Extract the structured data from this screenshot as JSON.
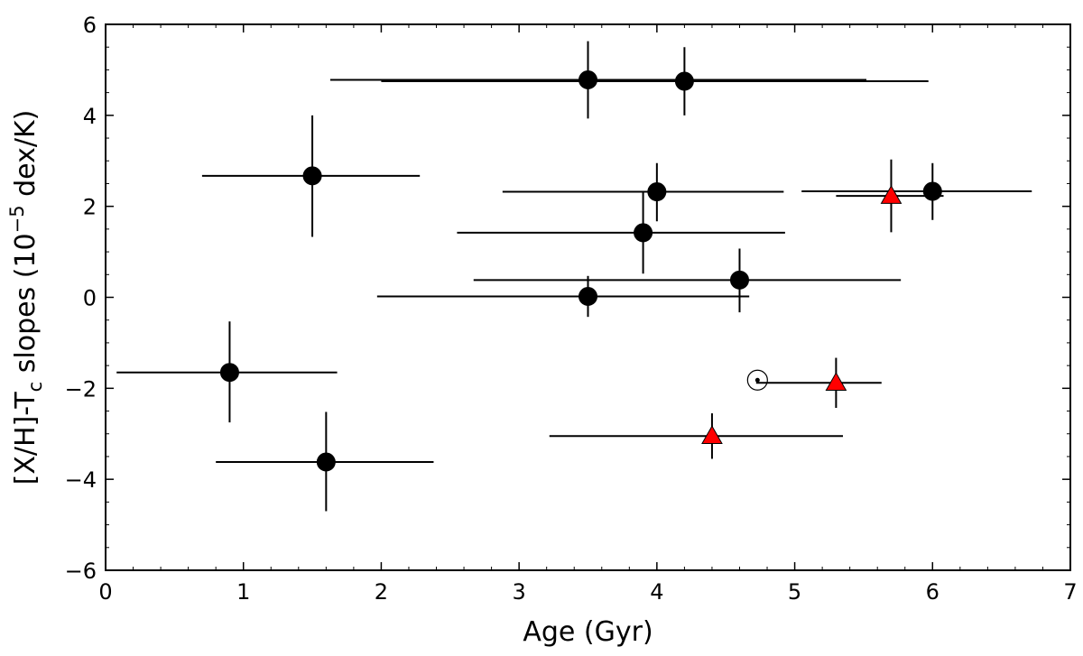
{
  "chart_data": {
    "type": "scatter",
    "title": "",
    "xlabel": "Age (Gyr)",
    "ylabel_parts": {
      "pre": "[X/H]-T",
      "sub": "c",
      "mid": " slopes (10",
      "sup": "−5",
      "post": " dex/K)"
    },
    "xlim": [
      0,
      7
    ],
    "ylim": [
      -6,
      6
    ],
    "xticks": [
      0,
      1,
      2,
      3,
      4,
      5,
      6,
      7
    ],
    "xtick_labels": [
      "0",
      "1",
      "2",
      "3",
      "4",
      "5",
      "6",
      "7"
    ],
    "yticks": [
      -6,
      -4,
      -2,
      0,
      2,
      4,
      6
    ],
    "ytick_labels": [
      "−6",
      "−4",
      "−2",
      "0",
      "2",
      "4",
      "6"
    ],
    "grid": false,
    "series": [
      {
        "name": "circles",
        "marker": "circle",
        "color": "#000000",
        "points": [
          {
            "x": 3.5,
            "y": 4.78,
            "xmin": 1.63,
            "xmax": 5.52,
            "ymin": 3.93,
            "ymax": 5.63
          },
          {
            "x": 4.2,
            "y": 4.75,
            "xmin": 2.0,
            "xmax": 5.97,
            "ymin": 4.0,
            "ymax": 5.5
          },
          {
            "x": 1.5,
            "y": 2.67,
            "xmin": 0.7,
            "xmax": 2.28,
            "ymin": 1.33,
            "ymax": 4.0
          },
          {
            "x": 4.0,
            "y": 2.32,
            "xmin": 2.88,
            "xmax": 4.92,
            "ymin": 1.67,
            "ymax": 2.95
          },
          {
            "x": 6.0,
            "y": 2.33,
            "xmin": 5.05,
            "xmax": 6.72,
            "ymin": 1.7,
            "ymax": 2.95
          },
          {
            "x": 3.9,
            "y": 1.42,
            "xmin": 2.55,
            "xmax": 4.93,
            "ymin": 0.52,
            "ymax": 2.32
          },
          {
            "x": 4.6,
            "y": 0.38,
            "xmin": 2.67,
            "xmax": 5.77,
            "ymin": -0.33,
            "ymax": 1.07
          },
          {
            "x": 3.5,
            "y": 0.02,
            "xmin": 1.97,
            "xmax": 4.67,
            "ymin": -0.43,
            "ymax": 0.47
          },
          {
            "x": 0.9,
            "y": -1.65,
            "xmin": 0.08,
            "xmax": 1.68,
            "ymin": -2.75,
            "ymax": -0.53
          },
          {
            "x": 1.6,
            "y": -3.62,
            "xmin": 0.8,
            "xmax": 2.38,
            "ymin": -4.7,
            "ymax": -2.52
          }
        ]
      },
      {
        "name": "triangles",
        "marker": "triangle",
        "color": "#ff0000",
        "points": [
          {
            "x": 5.7,
            "y": 2.23,
            "xmin": 5.3,
            "xmax": 6.08,
            "ymin": 1.43,
            "ymax": 3.03
          },
          {
            "x": 5.3,
            "y": -1.88,
            "xmin": 4.72,
            "xmax": 5.63,
            "ymin": -2.43,
            "ymax": -1.33
          },
          {
            "x": 4.4,
            "y": -3.05,
            "xmin": 3.22,
            "xmax": 5.35,
            "ymin": -3.55,
            "ymax": -2.55
          }
        ]
      },
      {
        "name": "sun",
        "marker": "sun",
        "color": "#000000",
        "points": [
          {
            "x": 4.73,
            "y": -1.82
          }
        ]
      }
    ]
  }
}
